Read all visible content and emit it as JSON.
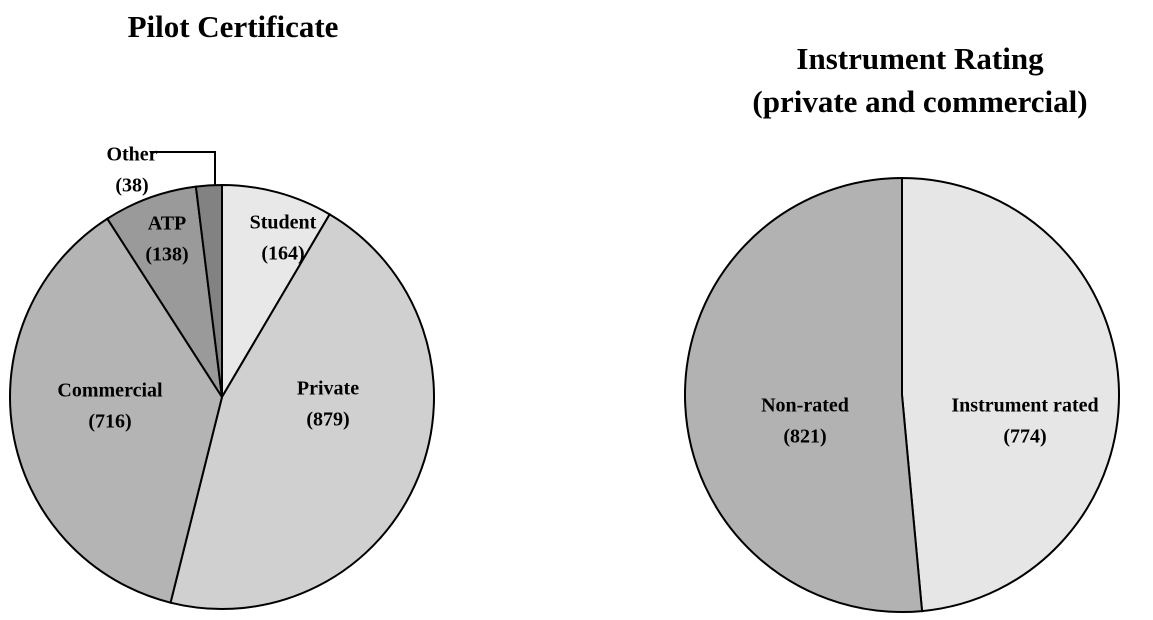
{
  "chart_data": [
    {
      "type": "pie",
      "title": "Pilot Certificate",
      "categories": [
        "Student",
        "Private",
        "Commercial",
        "ATP",
        "Other"
      ],
      "values": [
        164,
        879,
        716,
        138,
        38
      ],
      "value_labels": [
        "(164)",
        "(879)",
        "(716)",
        "(138)",
        "(38)"
      ],
      "colors": [
        "#e8e8e8",
        "#d0d0d0",
        "#b4b4b4",
        "#9a9a9a",
        "#828282"
      ]
    },
    {
      "type": "pie",
      "title": "Instrument Rating",
      "subtitle": "(private and commercial)",
      "categories": [
        "Instrument rated",
        "Non-rated"
      ],
      "values": [
        774,
        821
      ],
      "value_labels": [
        "(774)",
        "(821)"
      ],
      "colors": [
        "#e6e6e6",
        "#b2b2b2"
      ]
    }
  ]
}
